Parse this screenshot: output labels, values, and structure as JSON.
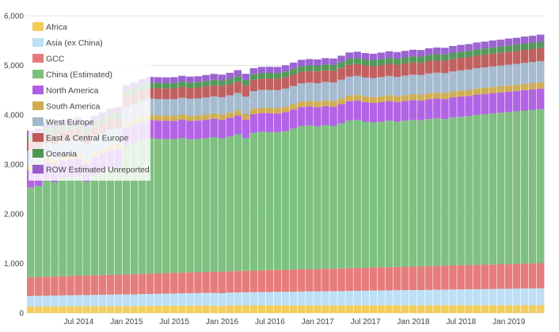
{
  "chart_data": {
    "type": "bar",
    "stacked": true,
    "x_start": "2014-01",
    "x_end": "2019-03",
    "ylim": [
      0,
      6000
    ],
    "grid": true,
    "legend_position": "top-left",
    "y_ticks": [
      "0",
      "1,000",
      "2,000",
      "3,000",
      "4,000",
      "5,000",
      "6,000"
    ],
    "x_ticks": [
      "Jul 2014",
      "Jan 2015",
      "Jul 2015",
      "Jan 2016",
      "Jul 2016",
      "Jan 2017",
      "Jul 2017",
      "Jan 2018",
      "Jul 2018",
      "Jan 2019"
    ],
    "series": [
      {
        "name": "Africa",
        "color": "#f2c744",
        "values": [
          130,
          132,
          133,
          134,
          135,
          136,
          137,
          135,
          138,
          139,
          140,
          141,
          140,
          137,
          142,
          143,
          144,
          145,
          146,
          147,
          148,
          149,
          150,
          148,
          140,
          151,
          151,
          152,
          152,
          152,
          153,
          153,
          153,
          150,
          154,
          154,
          153,
          153,
          153,
          153,
          154,
          154,
          154,
          155,
          155,
          155,
          156,
          155,
          155,
          154,
          155,
          155,
          156,
          156,
          156,
          156,
          156,
          156,
          157,
          157,
          157,
          157,
          158,
          158,
          158
        ]
      },
      {
        "name": "Asia (ex China)",
        "color": "#b4dcf5",
        "values": [
          212,
          214,
          216,
          218,
          220,
          222,
          224,
          226,
          228,
          230,
          232,
          234,
          236,
          238,
          240,
          242,
          244,
          246,
          248,
          250,
          252,
          254,
          256,
          258,
          260,
          262,
          264,
          266,
          268,
          270,
          272,
          274,
          276,
          278,
          280,
          282,
          284,
          286,
          288,
          290,
          292,
          294,
          296,
          298,
          300,
          302,
          304,
          306,
          308,
          310,
          312,
          314,
          316,
          318,
          320,
          322,
          324,
          326,
          328,
          330,
          332,
          334,
          336,
          338,
          340
        ]
      },
      {
        "name": "GCC",
        "color": "#e36a6a",
        "values": [
          380,
          382,
          384,
          386,
          388,
          390,
          392,
          394,
          396,
          398,
          400,
          402,
          404,
          406,
          408,
          410,
          412,
          414,
          416,
          418,
          420,
          422,
          424,
          426,
          428,
          430,
          432,
          434,
          436,
          438,
          440,
          442,
          444,
          446,
          448,
          450,
          452,
          454,
          456,
          458,
          460,
          462,
          464,
          466,
          468,
          470,
          472,
          474,
          476,
          478,
          480,
          482,
          484,
          486,
          488,
          490,
          492,
          494,
          496,
          498,
          500,
          502,
          504,
          506,
          508
        ]
      },
      {
        "name": "China (Estimated)",
        "color": "#6db86f",
        "values": [
          1810,
          1840,
          1950,
          1910,
          1980,
          1990,
          2010,
          1900,
          2020,
          2080,
          2150,
          2170,
          2600,
          2650,
          2700,
          2740,
          2720,
          2710,
          2700,
          2720,
          2690,
          2690,
          2700,
          2720,
          2700,
          2720,
          2760,
          2680,
          2780,
          2800,
          2790,
          2780,
          2800,
          2850,
          2890,
          2900,
          2880,
          2900,
          2880,
          2930,
          2980,
          2990,
          2950,
          2930,
          2940,
          2960,
          2930,
          2950,
          2960,
          2950,
          2970,
          2980,
          2960,
          2990,
          3000,
          3010,
          3030,
          3040,
          3050,
          3060,
          3070,
          3080,
          3090,
          3100,
          3110
        ]
      },
      {
        "name": "North America",
        "color": "#a94de2",
        "values": [
          350,
          350,
          352,
          352,
          354,
          354,
          356,
          356,
          358,
          358,
          360,
          360,
          362,
          362,
          364,
          364,
          366,
          366,
          368,
          368,
          370,
          370,
          372,
          372,
          374,
          374,
          376,
          376,
          378,
          378,
          380,
          380,
          382,
          382,
          384,
          384,
          386,
          386,
          388,
          388,
          390,
          390,
          392,
          392,
          394,
          394,
          396,
          396,
          398,
          398,
          400,
          400,
          402,
          402,
          404,
          404,
          406,
          406,
          408,
          408,
          410,
          410,
          412,
          412,
          414
        ]
      },
      {
        "name": "South America",
        "color": "#c9a43c",
        "values": [
          95,
          95,
          96,
          96,
          97,
          97,
          98,
          98,
          99,
          99,
          100,
          100,
          101,
          101,
          102,
          102,
          103,
          103,
          104,
          104,
          105,
          105,
          106,
          106,
          107,
          107,
          108,
          108,
          109,
          109,
          110,
          110,
          111,
          111,
          112,
          112,
          113,
          113,
          114,
          114,
          115,
          115,
          116,
          116,
          117,
          117,
          118,
          118,
          119,
          119,
          120,
          120,
          121,
          121,
          122,
          122,
          123,
          123,
          124,
          124,
          125,
          125,
          126,
          126,
          127
        ]
      },
      {
        "name": "West Europe",
        "color": "#98b2c8",
        "values": [
          300,
          302,
          304,
          306,
          308,
          310,
          312,
          314,
          316,
          318,
          320,
          322,
          324,
          326,
          328,
          330,
          332,
          334,
          336,
          338,
          340,
          342,
          344,
          346,
          348,
          350,
          352,
          354,
          356,
          358,
          360,
          362,
          364,
          366,
          368,
          370,
          372,
          374,
          376,
          378,
          380,
          382,
          384,
          386,
          388,
          390,
          392,
          394,
          396,
          398,
          400,
          402,
          404,
          406,
          408,
          410,
          412,
          414,
          416,
          418,
          420,
          422,
          424,
          426,
          428
        ]
      },
      {
        "name": "East & Central Europe",
        "color": "#b84a4a",
        "values": [
          200,
          200,
          202,
          202,
          204,
          204,
          206,
          206,
          208,
          208,
          210,
          210,
          212,
          212,
          214,
          214,
          216,
          216,
          218,
          218,
          220,
          220,
          222,
          222,
          224,
          224,
          226,
          226,
          228,
          228,
          230,
          230,
          232,
          232,
          234,
          234,
          236,
          236,
          238,
          238,
          240,
          240,
          242,
          242,
          244,
          244,
          246,
          246,
          248,
          248,
          250,
          250,
          252,
          252,
          254,
          254,
          256,
          256,
          258,
          258,
          260,
          260,
          262,
          262,
          264
        ]
      },
      {
        "name": "Oceania",
        "color": "#3c8c44",
        "values": [
          98,
          98,
          99,
          99,
          100,
          100,
          101,
          101,
          102,
          102,
          103,
          103,
          104,
          104,
          105,
          105,
          106,
          106,
          107,
          107,
          108,
          108,
          109,
          109,
          110,
          110,
          111,
          111,
          112,
          112,
          113,
          113,
          114,
          114,
          115,
          115,
          116,
          116,
          117,
          117,
          118,
          118,
          119,
          119,
          120,
          120,
          121,
          121,
          122,
          122,
          123,
          123,
          124,
          124,
          125,
          125,
          126,
          126,
          127,
          127,
          128,
          128,
          129,
          129,
          130
        ]
      },
      {
        "name": "ROW Estimated Unreported",
        "color": "#8d4ec9",
        "values": [
          110,
          110,
          111,
          111,
          112,
          112,
          113,
          113,
          114,
          114,
          115,
          115,
          116,
          116,
          117,
          117,
          118,
          118,
          119,
          119,
          120,
          120,
          121,
          121,
          122,
          122,
          123,
          123,
          124,
          124,
          125,
          125,
          126,
          126,
          127,
          127,
          128,
          128,
          129,
          129,
          130,
          130,
          131,
          131,
          132,
          132,
          133,
          133,
          134,
          134,
          135,
          135,
          136,
          136,
          137,
          137,
          138,
          138,
          139,
          139,
          140,
          140,
          141,
          141,
          142
        ]
      }
    ]
  }
}
